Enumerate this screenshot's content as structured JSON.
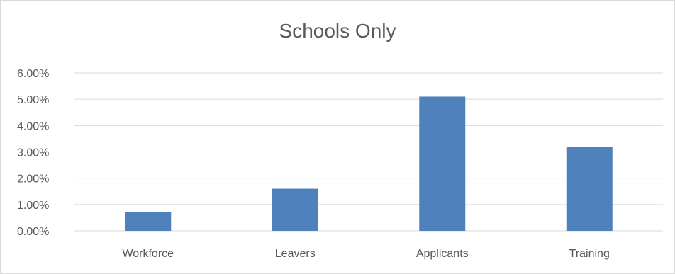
{
  "chart_data": {
    "type": "bar",
    "title": "Schools Only",
    "categories": [
      "Workforce",
      "Leavers",
      "Applicants",
      "Training"
    ],
    "values": [
      0.7,
      1.6,
      5.1,
      3.2
    ],
    "value_unit": "percent",
    "xlabel": "",
    "ylabel": "",
    "ylim": [
      0,
      6
    ],
    "yticks": [
      "0.00%",
      "1.00%",
      "2.00%",
      "3.00%",
      "4.00%",
      "5.00%",
      "6.00%"
    ],
    "grid": true,
    "legend": "none",
    "colors": {
      "bar": "#4f81bd",
      "grid": "#d9d9d9",
      "text": "#595959"
    }
  }
}
